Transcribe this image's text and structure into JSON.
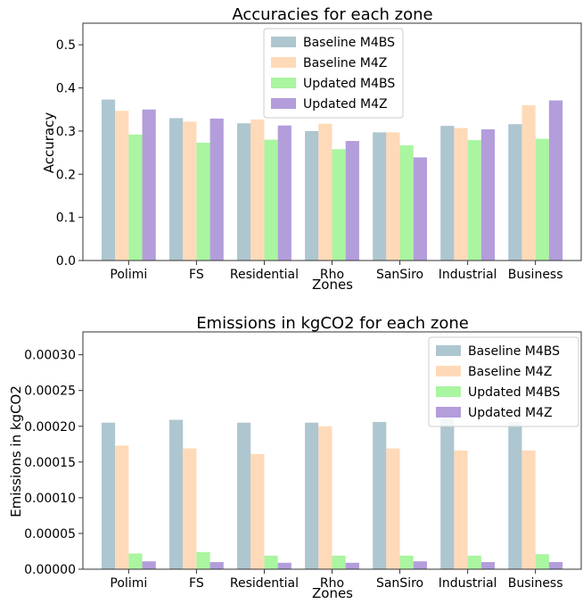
{
  "chart_data": [
    {
      "type": "bar",
      "title": "Accuracies for each zone",
      "xlabel": "Zones",
      "ylabel": "Accuracy",
      "categories": [
        "Polimi",
        "FS",
        "Residential",
        "Rho",
        "SanSiro",
        "Industrial",
        "Business"
      ],
      "ylim": [
        0,
        0.55
      ],
      "yticks": [
        "0.0",
        "0.1",
        "0.2",
        "0.3",
        "0.4",
        "0.5"
      ],
      "legend_position": "top-center",
      "grid": false,
      "series": [
        {
          "name": "Baseline M4BS",
          "color": "#aec6cf",
          "values": [
            0.373,
            0.33,
            0.318,
            0.3,
            0.297,
            0.312,
            0.316
          ]
        },
        {
          "name": "Baseline M4Z",
          "color": "#ffdab9",
          "values": [
            0.347,
            0.322,
            0.327,
            0.317,
            0.297,
            0.307,
            0.36
          ]
        },
        {
          "name": "Updated M4BS",
          "color": "#aaf5a0",
          "values": [
            0.292,
            0.273,
            0.28,
            0.258,
            0.267,
            0.279,
            0.282
          ]
        },
        {
          "name": "Updated M4Z",
          "color": "#b39ddb",
          "values": [
            0.35,
            0.329,
            0.313,
            0.277,
            0.239,
            0.304,
            0.371
          ]
        }
      ]
    },
    {
      "type": "bar",
      "title": "Emissions in kgCO2 for each zone",
      "xlabel": "Zones",
      "ylabel": "Emissions in kgCO2",
      "categories": [
        "Polimi",
        "FS",
        "Residential",
        "Rho",
        "SanSiro",
        "Industrial",
        "Business"
      ],
      "ylim": [
        0,
        0.000332
      ],
      "yticks": [
        "0.00000",
        "0.00005",
        "0.00010",
        "0.00015",
        "0.00020",
        "0.00025",
        "0.00030"
      ],
      "legend_position": "top-right",
      "grid": false,
      "series": [
        {
          "name": "Baseline M4BS",
          "color": "#aec6cf",
          "values": [
            0.000205,
            0.000209,
            0.000205,
            0.000205,
            0.000206,
            0.000211,
            0.000206
          ]
        },
        {
          "name": "Baseline M4Z",
          "color": "#ffdab9",
          "values": [
            0.000173,
            0.000169,
            0.000161,
            0.0002,
            0.000169,
            0.000166,
            0.000166
          ]
        },
        {
          "name": "Updated M4BS",
          "color": "#aaf5a0",
          "values": [
            2.2e-05,
            2.4e-05,
            1.9e-05,
            1.9e-05,
            1.9e-05,
            1.9e-05,
            2.1e-05
          ]
        },
        {
          "name": "Updated M4Z",
          "color": "#b39ddb",
          "values": [
            1.1e-05,
            1e-05,
            9e-06,
            9e-06,
            1.1e-05,
            1e-05,
            1e-05
          ]
        }
      ]
    }
  ]
}
